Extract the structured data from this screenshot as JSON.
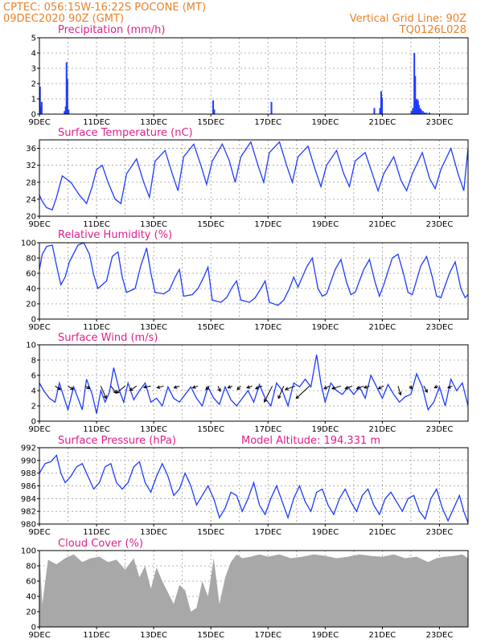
{
  "header": {
    "line1_left": "CPTEC:  056:15W-16:22S  POCONE (MT)",
    "line2_left": "09DEC2020 90Z (GMT)",
    "line1_right": "Vertical Grid Line: 90Z",
    "line2_right": "TQ0126L028"
  },
  "x_axis": {
    "start": "2020-12-09T00:00Z",
    "end": "2020-12-24T00:00Z",
    "tick_labels": [
      "9DEC",
      "11DEC",
      "13DEC",
      "15DEC",
      "17DEC",
      "19DEC",
      "21DEC",
      "23DEC"
    ],
    "tick_days": [
      9,
      11,
      13,
      15,
      17,
      19,
      21,
      23
    ]
  },
  "colors": {
    "line": "#1e3cff",
    "bar_blue": "#1e3cff",
    "cloud": "#a8a8a8",
    "title": "#e0208c",
    "header": "#e8822a",
    "arrow": "#000000"
  },
  "chart_data": [
    {
      "type": "bar",
      "title": "Precipitation (mm/h)",
      "ylim": [
        0,
        5
      ],
      "yticks": [
        0,
        1,
        2,
        3,
        4,
        5
      ],
      "x_day": [
        9.02,
        9.05,
        9.08,
        9.88,
        9.92,
        9.95,
        9.98,
        10.02,
        15.08,
        15.12,
        17.12,
        20.72,
        20.92,
        20.96,
        20.99,
        22.02,
        22.07,
        22.12,
        22.15,
        22.18,
        22.21,
        22.25,
        22.28,
        22.32,
        22.36,
        22.42,
        22.48,
        22.55,
        22.65
      ],
      "values": [
        1.8,
        0.5,
        0.8,
        0.2,
        0.5,
        3.4,
        2.3,
        0.3,
        0.9,
        0.3,
        0.8,
        0.4,
        0.4,
        1.5,
        1.1,
        0.2,
        0.4,
        4.0,
        2.5,
        0.9,
        1.0,
        0.9,
        0.6,
        0.4,
        0.3,
        0.2,
        0.1,
        0.1,
        0.1
      ]
    },
    {
      "type": "line",
      "title": "Surface Temperature (nC)",
      "ylim": [
        20,
        38
      ],
      "yticks": [
        20,
        24,
        28,
        32,
        36
      ],
      "x_day": [
        9.0,
        9.1,
        9.25,
        9.45,
        9.6,
        9.8,
        10.1,
        10.4,
        10.65,
        10.85,
        11.0,
        11.2,
        11.4,
        11.65,
        11.85,
        12.05,
        12.4,
        12.65,
        12.85,
        13.05,
        13.4,
        13.65,
        13.85,
        14.05,
        14.4,
        14.65,
        14.85,
        15.05,
        15.4,
        15.65,
        15.85,
        16.05,
        16.4,
        16.65,
        16.85,
        17.05,
        17.4,
        17.65,
        17.85,
        18.05,
        18.4,
        18.65,
        18.85,
        19.05,
        19.4,
        19.65,
        19.85,
        20.05,
        20.4,
        20.65,
        20.85,
        21.05,
        21.4,
        21.65,
        21.85,
        22.05,
        22.4,
        22.65,
        22.85,
        23.05,
        23.4,
        23.65,
        23.85,
        24.0
      ],
      "values": [
        25.0,
        23.5,
        22.0,
        21.5,
        24.5,
        29.5,
        28.0,
        25.0,
        23.0,
        27.0,
        31.0,
        32.0,
        28.0,
        24.0,
        23.0,
        30.0,
        33.5,
        28.0,
        24.5,
        33.0,
        35.5,
        30.0,
        26.0,
        34.0,
        37.0,
        32.0,
        27.5,
        33.0,
        37.0,
        33.0,
        28.0,
        34.0,
        37.5,
        32.0,
        28.0,
        35.0,
        37.5,
        32.0,
        28.0,
        34.0,
        36.5,
        31.0,
        27.0,
        32.0,
        35.5,
        30.0,
        27.0,
        33.0,
        35.0,
        30.0,
        26.0,
        30.0,
        34.0,
        28.5,
        26.0,
        30.0,
        35.0,
        29.0,
        26.5,
        31.0,
        36.0,
        30.0,
        26.0,
        36.0
      ]
    },
    {
      "type": "line",
      "title": "Relative Humidity (%)",
      "ylim": [
        0,
        100
      ],
      "yticks": [
        0,
        20,
        40,
        60,
        80,
        100
      ],
      "x_day": [
        9.0,
        9.1,
        9.25,
        9.45,
        9.6,
        9.75,
        9.9,
        10.05,
        10.35,
        10.55,
        10.75,
        10.9,
        11.05,
        11.35,
        11.55,
        11.75,
        11.9,
        12.05,
        12.35,
        12.55,
        12.75,
        12.9,
        13.05,
        13.35,
        13.55,
        13.75,
        13.9,
        14.05,
        14.35,
        14.55,
        14.75,
        14.9,
        15.05,
        15.35,
        15.55,
        15.75,
        15.9,
        16.05,
        16.35,
        16.55,
        16.75,
        16.9,
        17.05,
        17.35,
        17.55,
        17.75,
        17.9,
        18.05,
        18.35,
        18.55,
        18.75,
        18.9,
        19.05,
        19.35,
        19.55,
        19.75,
        19.9,
        20.05,
        20.35,
        20.55,
        20.75,
        20.9,
        21.05,
        21.35,
        21.55,
        21.75,
        21.9,
        22.05,
        22.35,
        22.55,
        22.75,
        22.9,
        23.05,
        23.35,
        23.55,
        23.75,
        23.9,
        24.0
      ],
      "values": [
        65.0,
        85.0,
        95.0,
        97.0,
        70.0,
        45.0,
        55.0,
        75.0,
        97.0,
        100.0,
        85.0,
        58.0,
        40.0,
        50.0,
        82.0,
        88.0,
        55.0,
        35.0,
        40.0,
        70.0,
        93.0,
        60.0,
        35.0,
        33.0,
        38.0,
        55.0,
        65.0,
        30.0,
        32.0,
        40.0,
        55.0,
        68.0,
        25.0,
        22.0,
        28.0,
        42.0,
        50.0,
        25.0,
        22.0,
        28.0,
        40.0,
        50.0,
        22.0,
        18.0,
        25.0,
        40.0,
        55.0,
        42.0,
        68.0,
        80.0,
        40.0,
        30.0,
        33.0,
        65.0,
        78.0,
        48.0,
        32.0,
        35.0,
        65.0,
        78.0,
        48.0,
        30.0,
        45.0,
        80.0,
        85.0,
        58.0,
        35.0,
        32.0,
        70.0,
        82.0,
        55.0,
        30.0,
        28.0,
        60.0,
        75.0,
        40.0,
        28.0,
        32.0
      ]
    },
    {
      "type": "line",
      "title": "Surface Wind (m/s)",
      "ylim": [
        0,
        10
      ],
      "yticks": [
        0,
        2,
        4,
        6,
        8,
        10
      ],
      "x_day": [
        9.0,
        9.15,
        9.35,
        9.55,
        9.7,
        9.85,
        10.0,
        10.2,
        10.35,
        10.5,
        10.65,
        10.85,
        11.0,
        11.15,
        11.3,
        11.45,
        11.6,
        11.8,
        11.95,
        12.1,
        12.3,
        12.5,
        12.7,
        12.9,
        13.1,
        13.3,
        13.5,
        13.7,
        13.9,
        14.1,
        14.3,
        14.5,
        14.7,
        14.9,
        15.1,
        15.3,
        15.5,
        15.7,
        15.9,
        16.1,
        16.3,
        16.5,
        16.7,
        16.9,
        17.1,
        17.3,
        17.5,
        17.7,
        17.9,
        18.1,
        18.3,
        18.5,
        18.7,
        18.85,
        19.0,
        19.2,
        19.4,
        19.6,
        19.8,
        20.0,
        20.2,
        20.4,
        20.6,
        20.8,
        21.0,
        21.2,
        21.4,
        21.6,
        21.8,
        22.0,
        22.2,
        22.4,
        22.6,
        22.8,
        23.0,
        23.2,
        23.4,
        23.6,
        23.8,
        24.0
      ],
      "values": [
        5.0,
        4.0,
        3.0,
        2.5,
        5.0,
        3.2,
        1.5,
        4.5,
        3.0,
        1.5,
        5.5,
        3.5,
        1.0,
        4.0,
        2.5,
        3.8,
        7.0,
        4.0,
        2.5,
        5.0,
        2.8,
        4.0,
        5.0,
        2.5,
        3.0,
        2.0,
        4.5,
        3.0,
        2.5,
        3.5,
        4.5,
        3.0,
        2.0,
        4.5,
        3.0,
        2.2,
        4.5,
        2.8,
        2.0,
        3.0,
        4.0,
        2.5,
        4.8,
        3.0,
        2.0,
        5.0,
        4.0,
        2.0,
        5.0,
        4.5,
        5.5,
        4.5,
        8.7,
        5.0,
        2.5,
        5.0,
        4.0,
        3.5,
        4.5,
        3.5,
        4.5,
        3.0,
        6.0,
        4.5,
        3.0,
        4.8,
        3.5,
        2.5,
        3.2,
        3.5,
        6.2,
        4.5,
        1.5,
        2.5,
        4.5,
        2.0,
        5.5,
        4.0,
        5.0,
        2.0
      ],
      "arrow_x_day": [
        9.55,
        10.0,
        10.6,
        11.15,
        11.5,
        12.0,
        12.4,
        12.9,
        13.35,
        13.9,
        14.55,
        14.95,
        15.25,
        15.75,
        16.05,
        16.45,
        16.8,
        17.15,
        17.55,
        17.95,
        18.45,
        19.15,
        19.55,
        19.95,
        20.35,
        20.55,
        21.05,
        21.55,
        21.95,
        22.45,
        22.95,
        23.45
      ],
      "arrow_u": [
        1.2,
        1.2,
        1.0,
        1.2,
        1.2,
        -2.0,
        -1.5,
        -1.6,
        -1.5,
        -1.2,
        -1.2,
        -0.8,
        0.5,
        -1.0,
        -0.8,
        -1.2,
        -1.5,
        -1.8,
        -1.2,
        -2.2,
        -3.0,
        -1.2,
        -2.0,
        -1.6,
        -1.6,
        -1.2,
        -1.2,
        0.6,
        0.6,
        0.8,
        -0.8,
        -1.0
      ],
      "arrow_v": [
        -0.8,
        -0.8,
        -0.6,
        -2.8,
        -1.6,
        -1.6,
        -1.0,
        -0.3,
        -0.4,
        -0.4,
        -0.4,
        -0.8,
        -1.2,
        -0.4,
        -0.8,
        -0.4,
        -0.6,
        -3.6,
        -2.8,
        -0.8,
        -2.8,
        -0.6,
        -0.6,
        -0.6,
        -0.6,
        -0.4,
        -0.6,
        -2.0,
        -0.6,
        -1.4,
        -0.4,
        -0.4
      ]
    },
    {
      "type": "line",
      "title": "Surface Pressure (hPa)",
      "annotation": "Model Altitude: 194.331  m",
      "ylim": [
        980,
        992
      ],
      "yticks": [
        980,
        982,
        984,
        986,
        988,
        990,
        992
      ],
      "x_day": [
        9.0,
        9.2,
        9.4,
        9.6,
        9.75,
        9.9,
        10.1,
        10.3,
        10.5,
        10.7,
        10.9,
        11.1,
        11.3,
        11.5,
        11.7,
        11.9,
        12.1,
        12.3,
        12.5,
        12.7,
        12.9,
        13.1,
        13.3,
        13.5,
        13.7,
        13.9,
        14.1,
        14.3,
        14.5,
        14.7,
        14.9,
        15.1,
        15.3,
        15.5,
        15.7,
        15.9,
        16.1,
        16.3,
        16.5,
        16.7,
        16.9,
        17.1,
        17.3,
        17.5,
        17.7,
        17.9,
        18.1,
        18.3,
        18.5,
        18.7,
        18.9,
        19.1,
        19.3,
        19.5,
        19.7,
        19.9,
        20.1,
        20.3,
        20.5,
        20.7,
        20.9,
        21.1,
        21.3,
        21.5,
        21.7,
        21.9,
        22.1,
        22.3,
        22.5,
        22.7,
        22.9,
        23.1,
        23.3,
        23.5,
        23.7,
        23.85,
        24.0
      ],
      "values": [
        988.0,
        989.5,
        989.8,
        990.8,
        988.0,
        986.5,
        987.5,
        989.0,
        989.5,
        987.5,
        985.5,
        986.5,
        989.0,
        989.5,
        986.5,
        985.5,
        986.5,
        989.0,
        989.8,
        986.5,
        985.0,
        987.5,
        989.5,
        987.5,
        984.5,
        985.5,
        988.0,
        986.0,
        983.0,
        984.5,
        986.0,
        984.0,
        981.0,
        982.5,
        985.0,
        984.5,
        982.0,
        984.0,
        986.5,
        983.0,
        981.5,
        984.0,
        986.0,
        983.5,
        981.0,
        984.0,
        986.0,
        983.5,
        982.0,
        985.0,
        985.5,
        983.0,
        981.5,
        984.0,
        985.5,
        983.5,
        982.0,
        984.5,
        985.5,
        983.0,
        981.5,
        984.0,
        985.0,
        983.5,
        982.0,
        984.0,
        984.5,
        982.0,
        980.8,
        984.0,
        985.5,
        982.5,
        980.5,
        982.5,
        984.5,
        982.0,
        980.2
      ]
    },
    {
      "type": "area",
      "title": "Cloud Cover (%)",
      "ylim": [
        0,
        100
      ],
      "yticks": [
        0,
        20,
        40,
        60,
        80,
        100
      ],
      "x_day": [
        9.0,
        9.1,
        9.3,
        9.6,
        9.9,
        10.2,
        10.5,
        10.8,
        11.1,
        11.4,
        11.7,
        12.0,
        12.3,
        12.5,
        12.7,
        12.9,
        13.1,
        13.3,
        13.5,
        13.7,
        13.9,
        14.1,
        14.3,
        14.5,
        14.7,
        14.9,
        15.1,
        15.3,
        15.5,
        15.7,
        15.9,
        16.1,
        16.4,
        16.7,
        17.0,
        17.4,
        17.8,
        18.2,
        18.6,
        19.0,
        19.4,
        19.8,
        20.2,
        20.6,
        21.0,
        21.4,
        21.8,
        22.2,
        22.6,
        22.9,
        23.2,
        23.5,
        23.8,
        24.0
      ],
      "values": [
        100.0,
        30.0,
        88.0,
        82.0,
        90.0,
        95.0,
        85.0,
        90.0,
        92.0,
        85.0,
        88.0,
        75.0,
        90.0,
        65.0,
        80.0,
        50.0,
        78.0,
        60.0,
        45.0,
        30.0,
        55.0,
        48.0,
        20.0,
        25.0,
        60.0,
        40.0,
        90.0,
        30.0,
        65.0,
        85.0,
        95.0,
        90.0,
        92.0,
        95.0,
        92.0,
        95.0,
        90.0,
        92.0,
        95.0,
        93.0,
        90.0,
        92.0,
        95.0,
        93.0,
        92.0,
        95.0,
        90.0,
        92.0,
        85.0,
        90.0,
        92.0,
        93.0,
        95.0,
        90.0
      ]
    }
  ]
}
